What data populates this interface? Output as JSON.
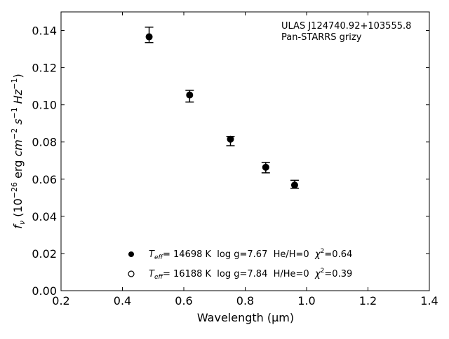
{
  "chart_data": {
    "type": "scatter",
    "title": "",
    "xlabel": "Wavelength (μm)",
    "ylabel_parts": {
      "f": "f",
      "nu": "ν",
      "open": " (10",
      "exp1": "−26",
      "erg": " erg ",
      "cm": "cm",
      "exp2": "−2",
      "s": " s",
      "exp3": "−1",
      "hz": " Hz",
      "exp4": "−1",
      "close": ")"
    },
    "xlim": [
      0.2,
      1.4
    ],
    "ylim": [
      0.0,
      0.15
    ],
    "xticks": [
      0.2,
      0.4,
      0.6,
      0.8,
      1.0,
      1.2,
      1.4
    ],
    "xtick_labels": [
      "0.2",
      "0.4",
      "0.6",
      "0.8",
      "1.0",
      "1.2",
      "1.4"
    ],
    "yticks": [
      0.0,
      0.02,
      0.04,
      0.06,
      0.08,
      0.1,
      0.12,
      0.14
    ],
    "ytick_labels": [
      "0.00",
      "0.02",
      "0.04",
      "0.06",
      "0.08",
      "0.10",
      "0.12",
      "0.14"
    ],
    "grid": false,
    "annotation": {
      "line1": "ULAS J124740.92+103555.8",
      "line2": "Pan-STARRS grizy"
    },
    "observed": {
      "x": [
        0.487,
        0.619,
        0.752,
        0.867,
        0.961
      ],
      "y": [
        0.1366,
        0.1053,
        0.0815,
        0.0664,
        0.0568
      ],
      "err_low": [
        0.1335,
        0.1015,
        0.078,
        0.0634,
        0.0551
      ],
      "err_high": [
        0.1418,
        0.1078,
        0.083,
        0.069,
        0.0594
      ]
    },
    "legend_position": "lower-center",
    "legend": [
      {
        "marker": "filled-circle",
        "T": "T",
        "sub": "eff",
        "text": "= 14698 K  log g=7.67  He/H=0  ",
        "chi": "χ",
        "sup": "2",
        "val": "=0.64"
      },
      {
        "marker": "open-circle",
        "T": "T",
        "sub": "eff",
        "text": "= 16188 K  log g=7.84  H/He=0  ",
        "chi": "χ",
        "sup": "2",
        "val": "=0.39"
      }
    ]
  }
}
